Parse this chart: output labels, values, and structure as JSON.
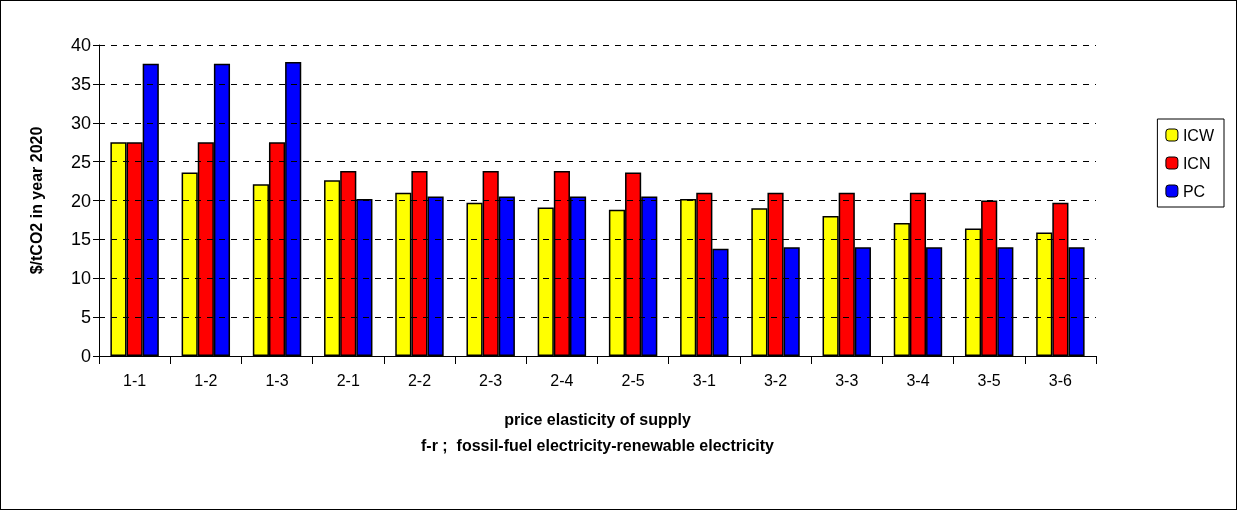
{
  "chart_data": {
    "type": "bar",
    "ylabel": "$/tCO2 in year 2020",
    "xlabel": "price elasticity of supply\nf-r ;  fossil-fuel electricity-renewable electricity",
    "categories": [
      "1-1",
      "1-2",
      "1-3",
      "2-1",
      "2-2",
      "2-3",
      "2-4",
      "2-5",
      "3-1",
      "3-2",
      "3-3",
      "3-4",
      "3-5",
      "3-6"
    ],
    "series": [
      {
        "name": "ICW",
        "color": "#ffff00",
        "values": [
          27.5,
          23.6,
          22.1,
          22.6,
          21.0,
          19.7,
          19.1,
          18.8,
          20.2,
          19.0,
          18.0,
          17.1,
          16.4,
          15.9
        ]
      },
      {
        "name": "ICN",
        "color": "#ff0000",
        "values": [
          27.5,
          27.5,
          27.5,
          23.8,
          23.8,
          23.8,
          23.8,
          23.6,
          21.0,
          21.0,
          21.0,
          21.0,
          20.0,
          19.7
        ]
      },
      {
        "name": "PC",
        "color": "#0000ff",
        "values": [
          37.6,
          37.6,
          37.8,
          20.2,
          20.5,
          20.5,
          20.5,
          20.5,
          13.8,
          14.0,
          14.0,
          14.0,
          14.0,
          14.0
        ]
      }
    ],
    "ylim": [
      0,
      40
    ],
    "yticks": [
      0,
      5,
      10,
      15,
      20,
      25,
      30,
      35,
      40
    ],
    "grid": "y",
    "legend": "right"
  }
}
